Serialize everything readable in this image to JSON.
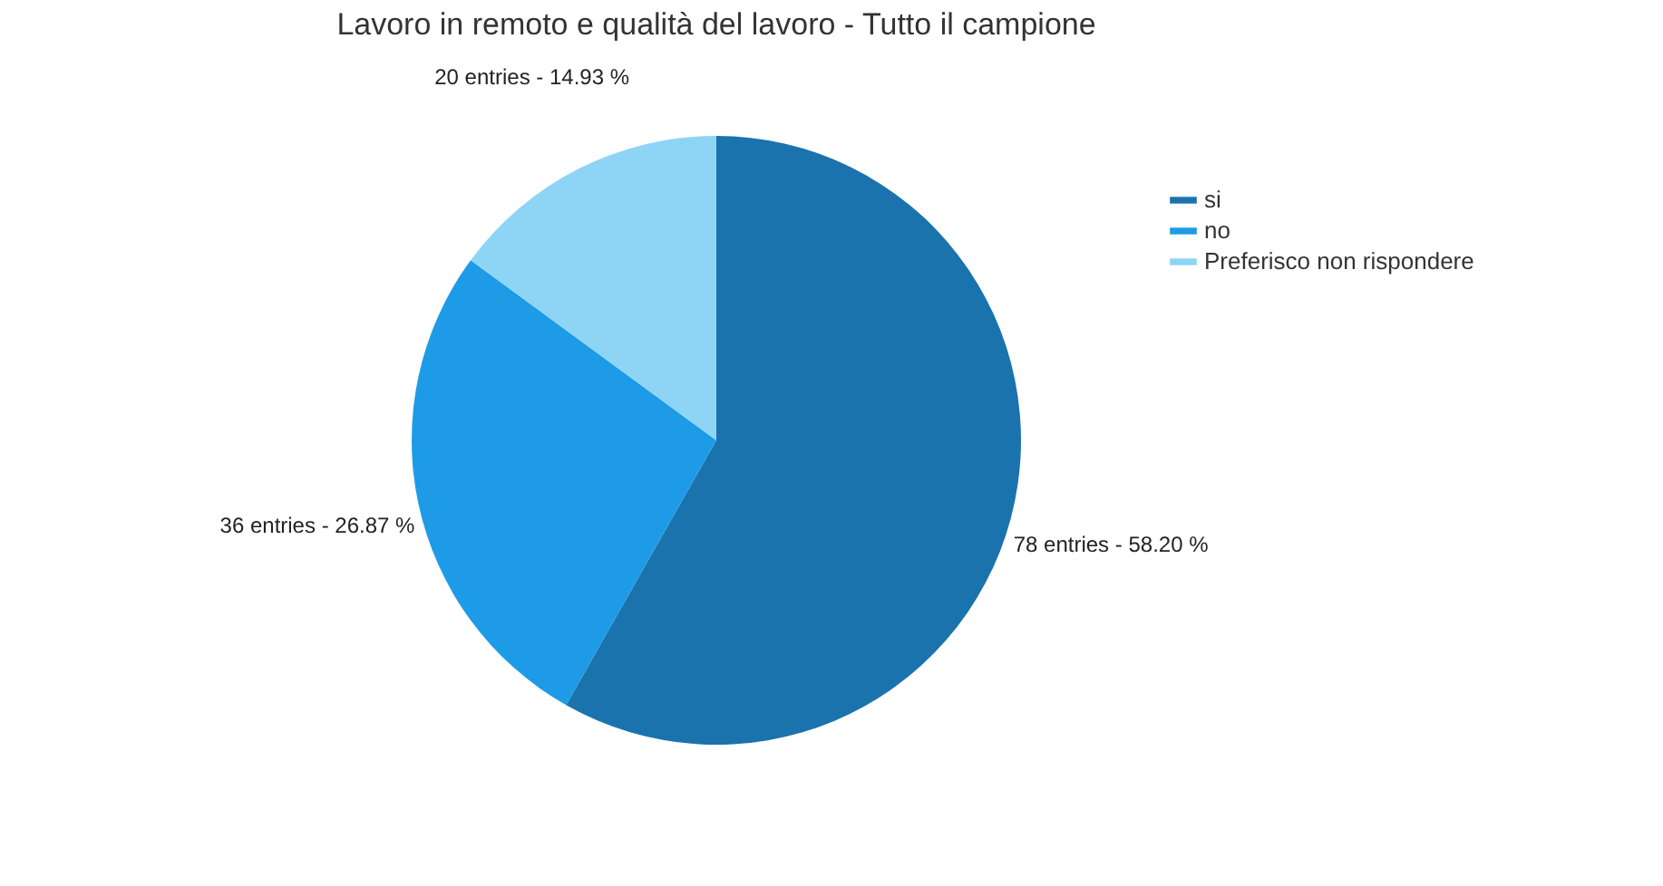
{
  "chart_data": {
    "type": "pie",
    "title": "Lavoro in remoto e qualità del lavoro - Tutto il campione",
    "categories": [
      "si",
      "no",
      "Preferisco non rispondere"
    ],
    "values": [
      78,
      36,
      20
    ],
    "colors": [
      "#1a73ad",
      "#1e9be6",
      "#8dd4f5"
    ],
    "value_labels": [
      "78 entries - 58.20 %",
      "36 entries - 26.87 %",
      "20 entries - 14.93 %"
    ],
    "legend": "top right"
  }
}
